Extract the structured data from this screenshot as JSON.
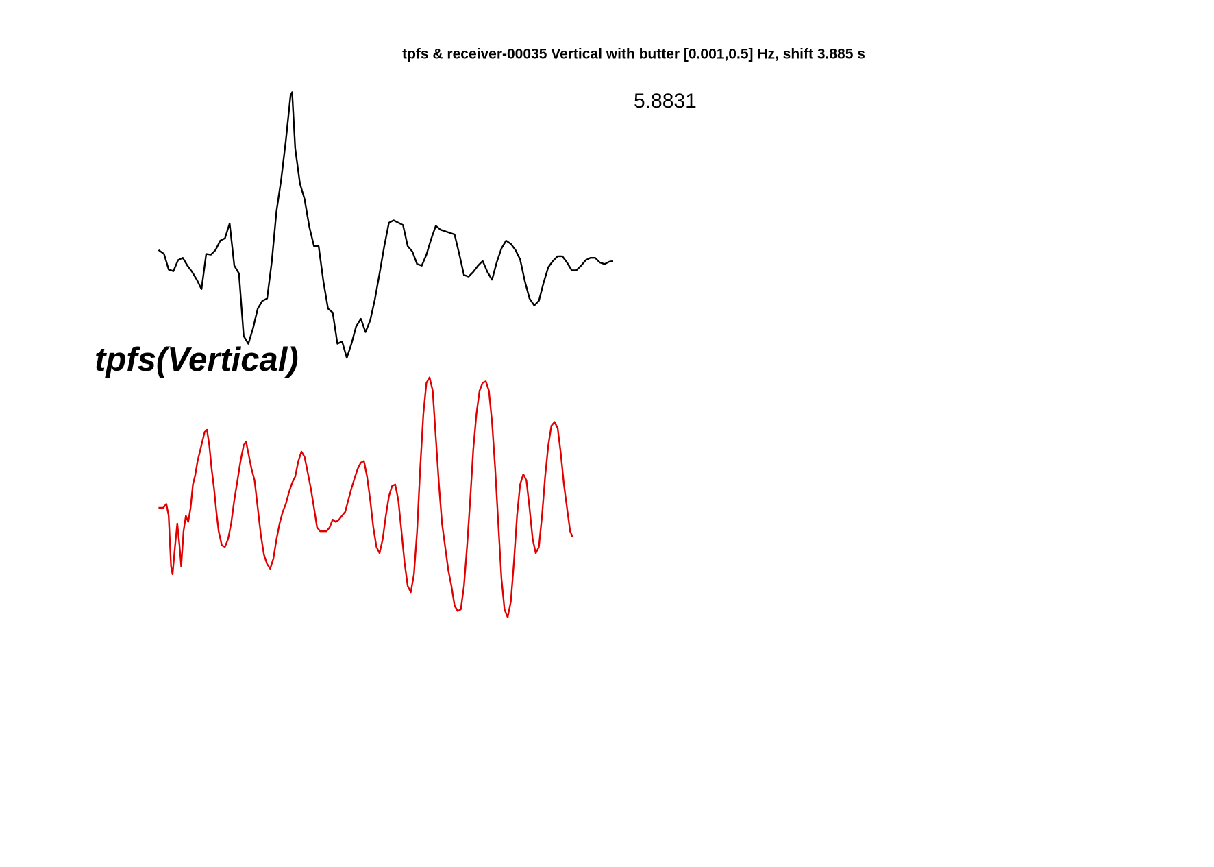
{
  "chart_data": {
    "type": "line",
    "title": "tpfs & receiver-00035 Vertical with butter [0.001,0.5] Hz, shift 3.885 s",
    "annotation": "5.8831",
    "trace_label": "tpfs(Vertical)",
    "series": [
      {
        "color": "#000000",
        "x": [
          0,
          7,
          13,
          19,
          25,
          31,
          37,
          43,
          49,
          55,
          61,
          67,
          73,
          79,
          85,
          91,
          97,
          103,
          109,
          115,
          121,
          127,
          133,
          139,
          145,
          151,
          157,
          163,
          169,
          171,
          175,
          181,
          187,
          193,
          199,
          205,
          211,
          217,
          223,
          229,
          235,
          241,
          247,
          253,
          259,
          265,
          271,
          277,
          283,
          289,
          295,
          301,
          307,
          313,
          319,
          325,
          331,
          337,
          343,
          349,
          355,
          361,
          367,
          373,
          379,
          385,
          391,
          397,
          403,
          409,
          415,
          421,
          427,
          433,
          439,
          445,
          451,
          457,
          463,
          469,
          475,
          481,
          487,
          493,
          499,
          505,
          511,
          517,
          523,
          529,
          535,
          541,
          547,
          553,
          559,
          565,
          571,
          577,
          582
        ],
        "values": [
          10,
          5,
          -15,
          -17,
          -3,
          0,
          -10,
          -18,
          -28,
          -40,
          5,
          4,
          10,
          22,
          25,
          44,
          -10,
          -20,
          -100,
          -110,
          -90,
          -65,
          -55,
          -52,
          -5,
          60,
          100,
          150,
          208,
          212,
          140,
          95,
          75,
          40,
          15,
          15,
          -30,
          -65,
          -70,
          -110,
          -107,
          -128,
          -110,
          -88,
          -78,
          -95,
          -80,
          -53,
          -20,
          15,
          45,
          48,
          45,
          42,
          15,
          8,
          -8,
          -10,
          4,
          24,
          41,
          36,
          34,
          32,
          30,
          5,
          -22,
          -24,
          -18,
          -10,
          -4,
          -18,
          -28,
          -6,
          12,
          22,
          18,
          10,
          -2,
          -30,
          -52,
          -61,
          -55,
          -32,
          -12,
          -4,
          2,
          2,
          -6,
          -16,
          -16,
          -10,
          -3,
          0,
          0,
          -6,
          -8,
          -5,
          -4
        ]
      },
      {
        "color": "#e00000",
        "x": [
          0,
          6,
          10,
          13,
          16,
          18,
          21,
          24,
          27,
          29,
          32,
          35,
          38,
          41,
          44,
          47,
          50,
          53,
          56,
          59,
          62,
          65,
          68,
          71,
          74,
          77,
          81,
          85,
          89,
          93,
          97,
          101,
          105,
          109,
          112,
          115,
          119,
          123,
          127,
          131,
          135,
          139,
          143,
          147,
          151,
          155,
          159,
          163,
          167,
          171,
          175,
          179,
          183,
          187,
          191,
          195,
          199,
          203,
          207,
          211,
          215,
          219,
          223,
          227,
          231,
          235,
          239,
          243,
          247,
          251,
          255,
          259,
          263,
          267,
          271,
          275,
          279,
          283,
          287,
          291,
          295,
          299,
          303,
          307,
          311,
          315,
          319,
          323,
          327,
          331,
          335,
          339,
          343,
          347,
          351,
          355,
          359,
          363,
          367,
          371,
          375,
          379,
          383,
          387,
          391,
          395,
          399,
          403,
          407,
          411,
          415,
          419,
          423,
          427,
          431,
          435,
          439,
          443,
          447,
          451,
          455,
          459,
          463,
          467,
          471,
          475,
          479,
          483,
          487,
          491,
          495,
          499,
          503,
          507,
          511,
          515,
          519,
          523,
          527,
          530
        ],
        "values": [
          0,
          0,
          5,
          -10,
          -75,
          -85,
          -50,
          -20,
          -50,
          -75,
          -30,
          -10,
          -18,
          0,
          30,
          42,
          60,
          72,
          85,
          97,
          100,
          80,
          50,
          25,
          -5,
          -30,
          -48,
          -50,
          -40,
          -20,
          10,
          35,
          60,
          80,
          85,
          70,
          50,
          35,
          0,
          -35,
          -60,
          -72,
          -78,
          -65,
          -40,
          -20,
          -5,
          5,
          20,
          32,
          40,
          60,
          72,
          65,
          45,
          25,
          0,
          -25,
          -30,
          -30,
          -30,
          -25,
          -15,
          -18,
          -15,
          -10,
          -5,
          10,
          25,
          38,
          50,
          58,
          60,
          40,
          10,
          -25,
          -50,
          -58,
          -40,
          -10,
          15,
          28,
          30,
          10,
          -30,
          -70,
          -100,
          -108,
          -85,
          -30,
          50,
          120,
          160,
          167,
          150,
          90,
          30,
          -20,
          -50,
          -80,
          -100,
          -125,
          -132,
          -130,
          -100,
          -50,
          10,
          75,
          120,
          150,
          160,
          162,
          150,
          110,
          50,
          -20,
          -90,
          -130,
          -140,
          -120,
          -70,
          -10,
          30,
          43,
          35,
          0,
          -40,
          -58,
          -50,
          -10,
          40,
          80,
          105,
          110,
          102,
          70,
          30,
          0,
          -30,
          -37
        ]
      }
    ]
  }
}
